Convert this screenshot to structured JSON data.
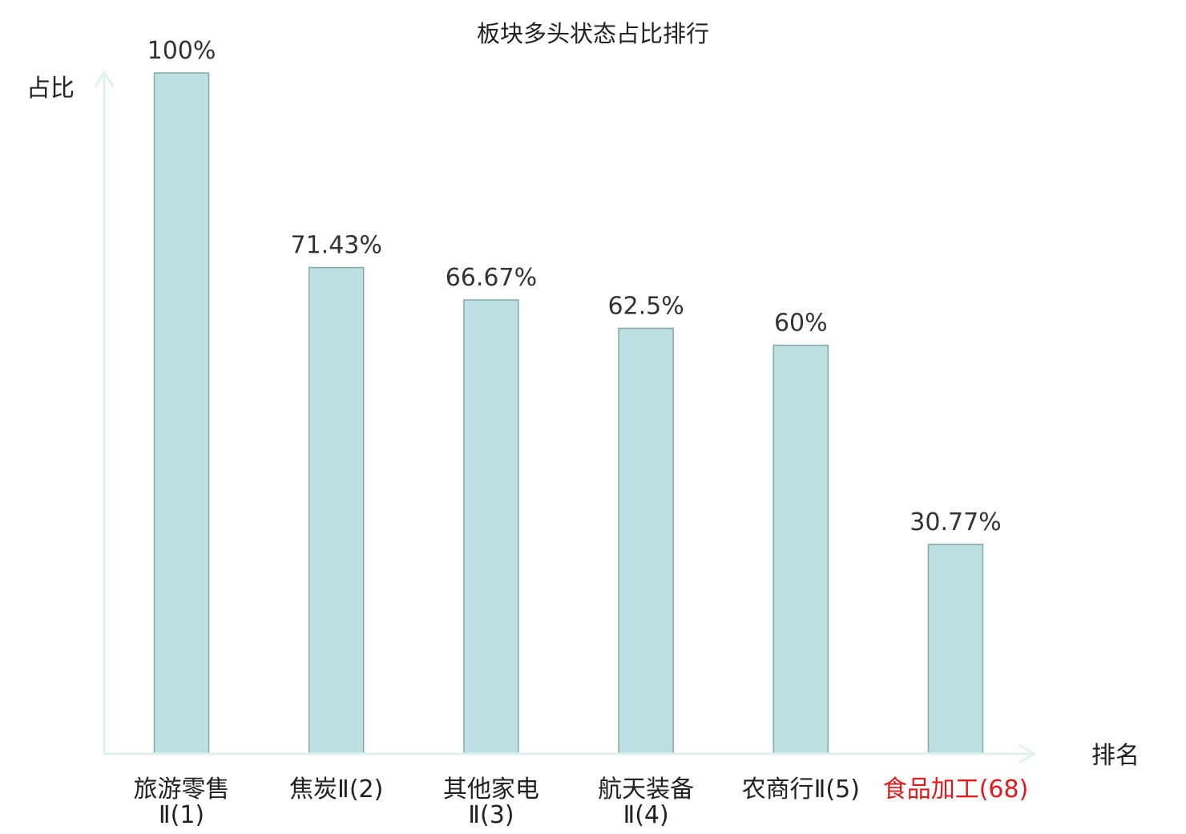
{
  "chart_data": {
    "type": "bar",
    "title": "板块多头状态占比排行",
    "ylabel": "占比",
    "xlabel": "排名",
    "ylim": [
      0,
      100
    ],
    "grid": false,
    "categories": [
      {
        "line1": "旅游零售",
        "line2": "Ⅱ(1)"
      },
      {
        "line1": "焦炭Ⅱ(2)",
        "line2": ""
      },
      {
        "line1": "其他家电",
        "line2": "Ⅱ(3)"
      },
      {
        "line1": "航天装备",
        "line2": "Ⅱ(4)"
      },
      {
        "line1": "农商行Ⅱ(5)",
        "line2": ""
      },
      {
        "line1": "食品加工(68)",
        "line2": "",
        "highlight": true
      }
    ],
    "values": [
      100,
      71.43,
      66.67,
      62.5,
      60,
      30.77
    ],
    "value_labels": [
      "100%",
      "71.43%",
      "66.67%",
      "62.5%",
      "60%",
      "30.77%"
    ],
    "colors": {
      "bar_fill": "#bde1e3",
      "bar_stroke": "#86a8ab",
      "axis": "#dff1ef",
      "highlight_text": "#e0191b",
      "text": "#222222"
    }
  }
}
